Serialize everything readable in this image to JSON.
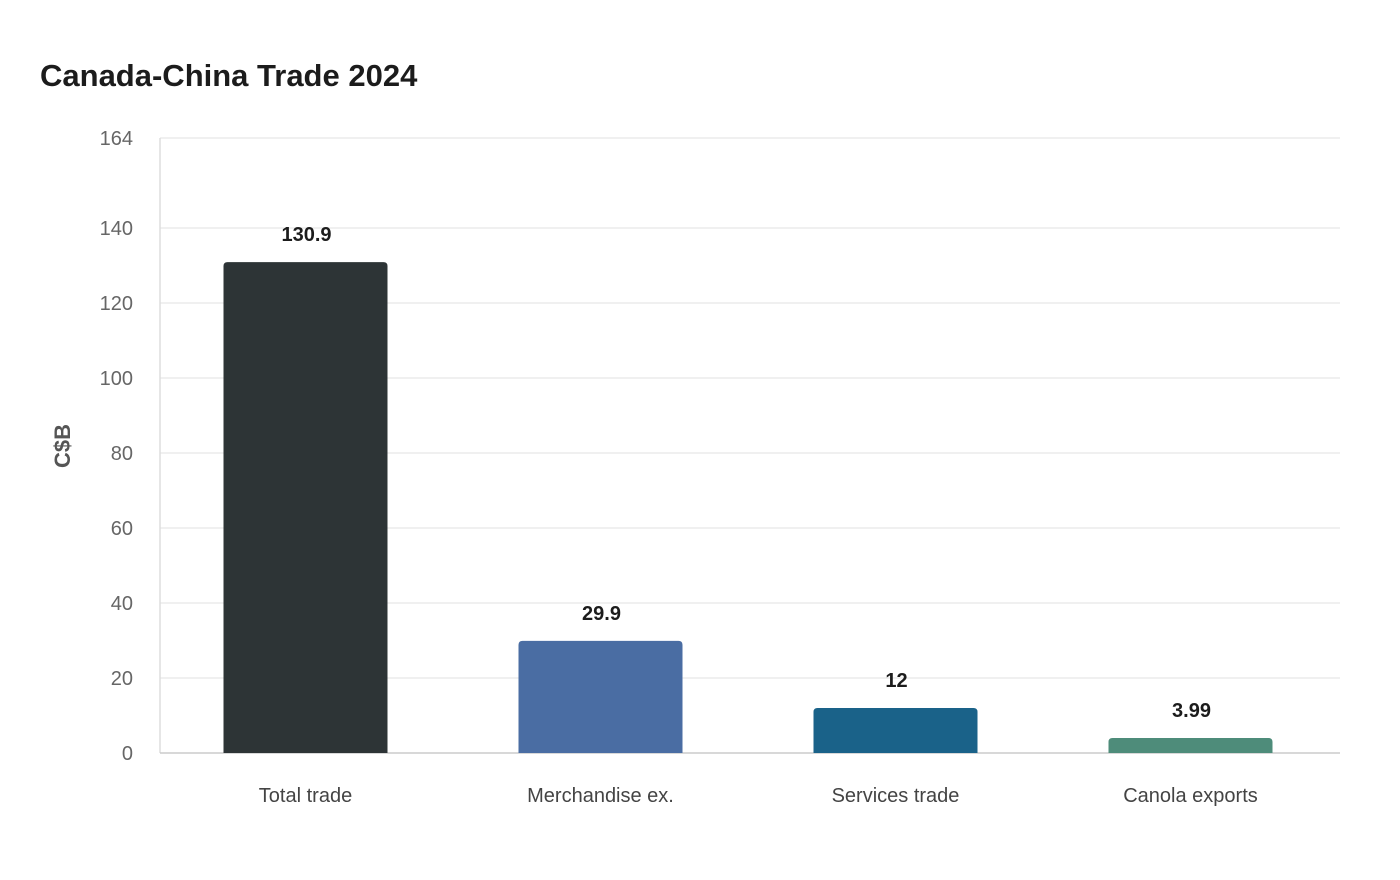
{
  "chart_data": {
    "type": "bar",
    "title": "Canada-China Trade 2024",
    "xlabel": "",
    "ylabel": "C$B",
    "categories": [
      "Total trade",
      "Merchandise ex.",
      "Services trade",
      "Canola exports"
    ],
    "values": [
      130.9,
      29.9,
      12,
      3.99
    ],
    "value_labels": [
      "130.9",
      "29.9",
      "12",
      "3.99"
    ],
    "ylim": [
      0,
      164
    ],
    "yticks": [
      0,
      20,
      40,
      60,
      80,
      100,
      120,
      140,
      164
    ],
    "colors": [
      "#2d3436",
      "#4a6da3",
      "#1a6289",
      "#4e8c7a"
    ],
    "grid": true,
    "legend": "none"
  }
}
